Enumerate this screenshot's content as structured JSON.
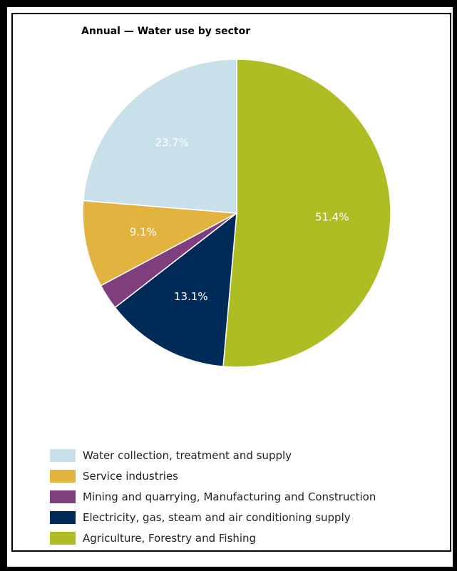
{
  "chart_data": {
    "type": "pie",
    "title": "Annual — Water use by sector",
    "slices": [
      {
        "name": "Agriculture, Forestry and Fishing",
        "value": 51.4,
        "label": "51.4%",
        "color": "#aebd23"
      },
      {
        "name": "Electricity, gas, steam and air conditioning supply",
        "value": 13.1,
        "label": "13.1%",
        "color": "#002a57"
      },
      {
        "name": "Mining and quarrying, Manufacturing and Construction",
        "value": 2.7,
        "label": "",
        "color": "#7f3f7f"
      },
      {
        "name": "Service industries",
        "value": 9.1,
        "label": "9.1%",
        "color": "#e2b33e"
      },
      {
        "name": "Water collection, treatment and supply",
        "value": 23.7,
        "label": "23.7%",
        "color": "#c7e0ea"
      }
    ],
    "legend_order": [
      "Water collection, treatment and supply",
      "Service industries",
      "Mining and quarrying, Manufacturing and Construction",
      "Electricity, gas, steam and air conditioning supply",
      "Agriculture, Forestry and Fishing"
    ],
    "legend_position": "bottom",
    "start_angle": "top",
    "direction": "clockwise"
  }
}
